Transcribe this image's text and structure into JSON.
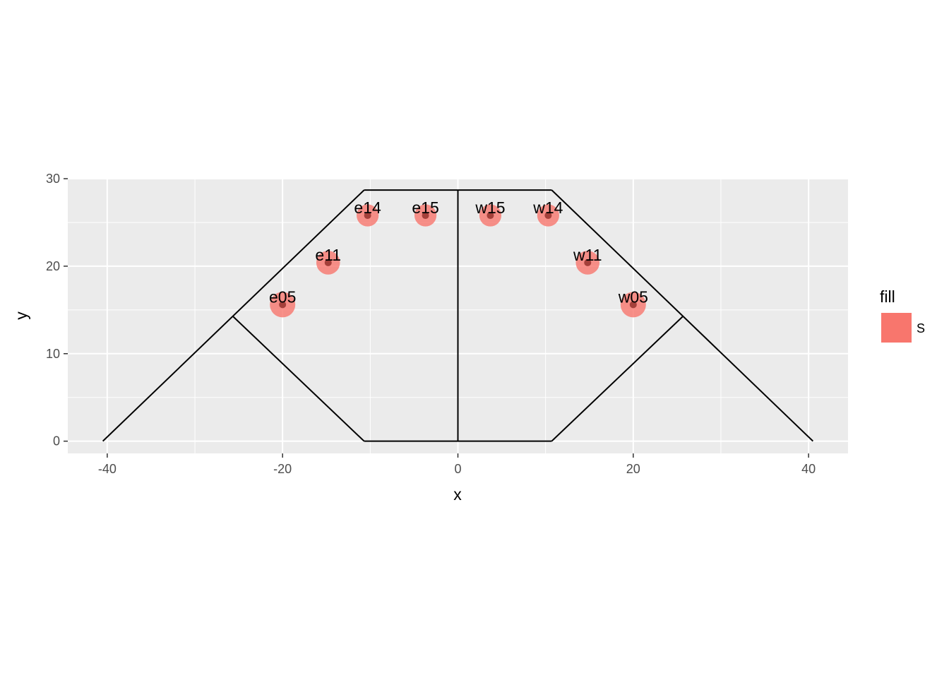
{
  "chart_data": {
    "type": "scatter",
    "xlabel": "x",
    "ylabel": "y",
    "xlim": [
      -44.5,
      44.5
    ],
    "ylim": [
      -1.4,
      30
    ],
    "x_ticks": [
      -40,
      -20,
      0,
      20,
      40
    ],
    "y_ticks": [
      0,
      10,
      20,
      30
    ],
    "x_tick_labels": [
      "-40",
      "-20",
      "0",
      "20",
      "40"
    ],
    "y_tick_labels": [
      "0",
      "10",
      "20",
      "30"
    ],
    "grid": true,
    "legend": {
      "title": "fill",
      "entries": [
        "S"
      ],
      "position": "right"
    },
    "series": [
      {
        "name": "S",
        "color": "#F8766D",
        "points": [
          {
            "label": "e05",
            "x": -20.0,
            "y": 15.6,
            "size": 1.0
          },
          {
            "label": "e11",
            "x": -14.8,
            "y": 20.4,
            "size": 0.85
          },
          {
            "label": "e14",
            "x": -10.3,
            "y": 25.8,
            "size": 0.7
          },
          {
            "label": "e15",
            "x": -3.7,
            "y": 25.8,
            "size": 0.7
          },
          {
            "label": "w15",
            "x": 3.7,
            "y": 25.8,
            "size": 0.7
          },
          {
            "label": "w14",
            "x": 10.3,
            "y": 25.8,
            "size": 0.7
          },
          {
            "label": "w11",
            "x": 14.8,
            "y": 20.4,
            "size": 0.85
          },
          {
            "label": "w05",
            "x": 20.0,
            "y": 15.6,
            "size": 1.0
          }
        ]
      }
    ],
    "outline_segments": [
      [
        [
          -40.5,
          0
        ],
        [
          -10.7,
          28.7
        ]
      ],
      [
        [
          -10.7,
          28.7
        ],
        [
          10.7,
          28.7
        ]
      ],
      [
        [
          10.7,
          28.7
        ],
        [
          40.5,
          0
        ]
      ],
      [
        [
          -25.7,
          14.3
        ],
        [
          -10.7,
          0
        ]
      ],
      [
        [
          -10.7,
          0
        ],
        [
          10.7,
          0
        ]
      ],
      [
        [
          10.7,
          0
        ],
        [
          25.7,
          14.3
        ]
      ],
      [
        [
          0,
          0
        ],
        [
          0,
          28.7
        ]
      ]
    ]
  }
}
